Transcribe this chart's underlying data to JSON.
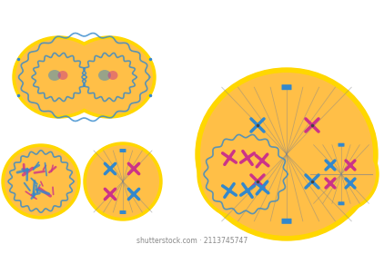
{
  "bg_color": "#ffffff",
  "cell_outer_color": "#FFD700",
  "cell_inner_color": "#FFA500",
  "cell_fill_color": "#FFBF47",
  "chr_blue": "#3388CC",
  "chr_pink": "#CC3388",
  "spindle_color": "#888888",
  "membrane_color": "#CC8800",
  "nucleus_ring_color": "#CC8800"
}
